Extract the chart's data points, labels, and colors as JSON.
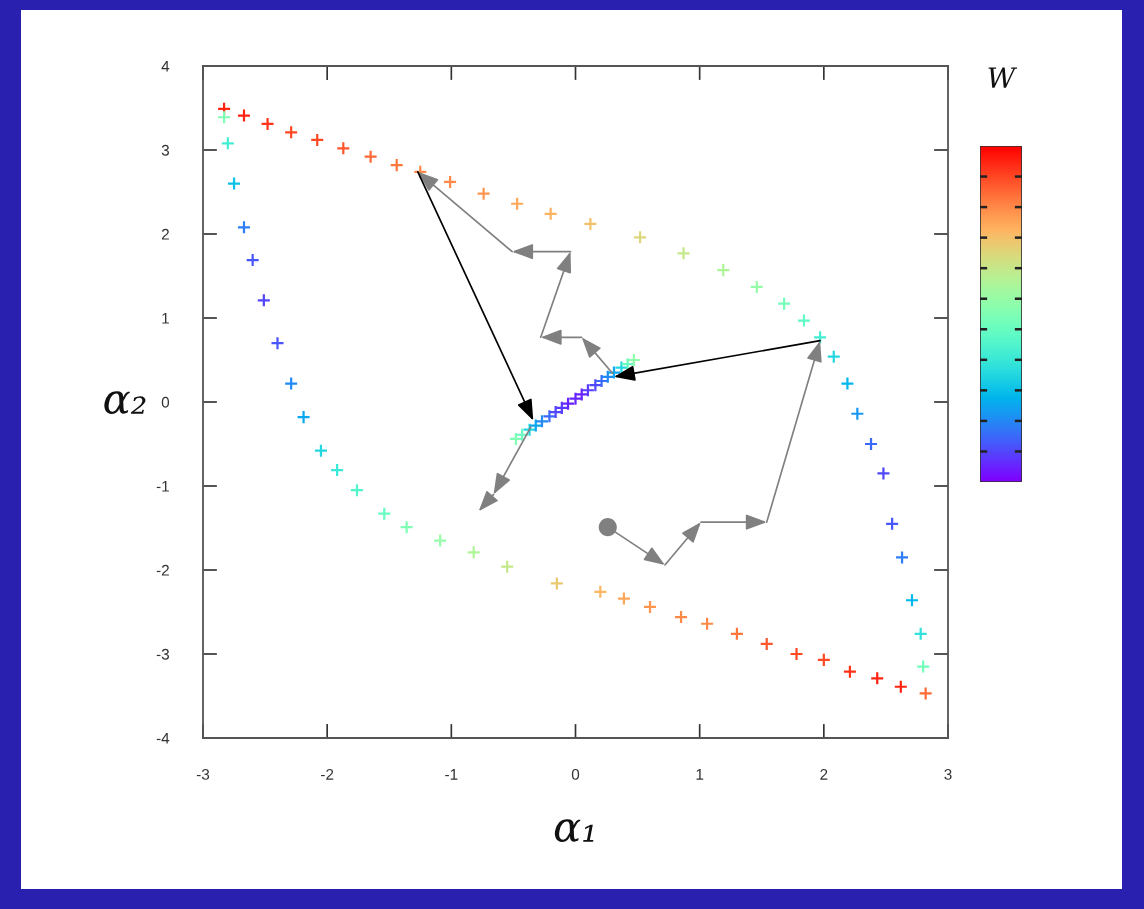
{
  "chart_data": {
    "type": "scatter",
    "xlabel": "α₁",
    "ylabel": "α₂",
    "clabel": "W",
    "xlim": [
      -3,
      3
    ],
    "ylim": [
      -4,
      4
    ],
    "xticks": [
      -3,
      -2,
      -1,
      0,
      1,
      2,
      3
    ],
    "yticks": [
      -4,
      -3,
      -2,
      -1,
      0,
      1,
      2,
      3,
      4
    ],
    "series": [
      {
        "marker": "cross",
        "x": [
          -2.83,
          -2.67,
          -2.48,
          -2.29,
          -2.08,
          -1.87,
          -1.65,
          -1.44,
          -1.25,
          -1.01,
          -0.74,
          -0.47,
          -0.2,
          0.12,
          0.52,
          0.87,
          1.19,
          1.46,
          1.68,
          1.84,
          1.97,
          2.08,
          2.19,
          2.27,
          2.38,
          2.48,
          2.55,
          2.63,
          2.71,
          2.78,
          2.8,
          2.82,
          2.62,
          2.43,
          2.21,
          2.0,
          1.78,
          1.54,
          1.3,
          1.06,
          0.85,
          0.6,
          0.39,
          0.2,
          -0.15,
          -0.55,
          -0.82,
          -1.09,
          -1.36,
          -1.54,
          -1.76,
          -1.92,
          -2.05,
          -2.19,
          -2.29,
          -2.4,
          -2.51,
          -2.6,
          -2.67,
          -2.75,
          -2.8,
          -2.83
        ],
        "values": [
          3.49,
          3.41,
          3.31,
          3.21,
          3.12,
          3.02,
          2.92,
          2.82,
          2.74,
          2.62,
          2.48,
          2.36,
          2.24,
          2.12,
          1.96,
          1.77,
          1.57,
          1.37,
          1.17,
          0.97,
          0.77,
          0.54,
          0.22,
          -0.14,
          -0.5,
          -0.85,
          -1.45,
          -1.85,
          -2.36,
          -2.76,
          -3.15,
          -3.47,
          -3.39,
          -3.29,
          -3.21,
          -3.07,
          -3.0,
          -2.88,
          -2.76,
          -2.64,
          -2.56,
          -2.44,
          -2.34,
          -2.26,
          -2.16,
          -1.96,
          -1.79,
          -1.65,
          -1.49,
          -1.33,
          -1.05,
          -0.81,
          -0.58,
          -0.18,
          0.22,
          0.7,
          1.21,
          1.69,
          2.08,
          2.6,
          3.08,
          3.39
        ],
        "colors": [
          "#ff2412",
          "#ff2412",
          "#ff3319",
          "#ff4824",
          "#ff4824",
          "#ff562c",
          "#ff6a36",
          "#ff773d",
          "#ff8a48",
          "#ff8a48",
          "#ff964f",
          "#ffa759",
          "#ffb260",
          "#f3c16a",
          "#dcd77a",
          "#c5e88a",
          "#aef598",
          "#97fca7",
          "#76ffb9",
          "#5ffac5",
          "#43eed3",
          "#23d7e0",
          "#02b7eb",
          "#1a96f3",
          "#3a6af9",
          "#5148fc",
          "#4856fb",
          "#2c7df7",
          "#02b7eb",
          "#31e1da",
          "#72febc",
          "#ff6a36",
          "#ff2412",
          "#ff2412",
          "#ff3319",
          "#ff4824",
          "#ff4824",
          "#ff562c",
          "#ff773d",
          "#ff8a48",
          "#ff8a48",
          "#ff964f",
          "#ffa759",
          "#fdb763",
          "#eaca70",
          "#c5e88a",
          "#aef598",
          "#97fca7",
          "#80ffb4",
          "#68fcc1",
          "#51f5cc",
          "#3ae8d7",
          "#23d7e0",
          "#0ca7ef",
          "#238af5",
          "#4856fb",
          "#5148fc",
          "#4856fb",
          "#2c7df7",
          "#0cc1e8",
          "#43eed3",
          "#80ffb4"
        ]
      },
      {
        "marker": "cross",
        "x": [
          -0.48,
          -0.43,
          -0.37,
          -0.32,
          -0.27,
          -0.21,
          -0.16,
          -0.11,
          -0.06,
          0.0,
          0.05,
          0.1,
          0.16,
          0.21,
          0.26,
          0.31,
          0.37,
          0.42,
          0.47
        ],
        "values": [
          -0.44,
          -0.39,
          -0.33,
          -0.28,
          -0.23,
          -0.17,
          -0.12,
          -0.07,
          -0.02,
          0.04,
          0.09,
          0.14,
          0.2,
          0.25,
          0.3,
          0.35,
          0.41,
          0.45,
          0.5
        ],
        "colors": [
          "#80ffb4",
          "#68fcc1",
          "#23d7e0",
          "#0ca7ef",
          "#238af5",
          "#3a6af9",
          "#5148fc",
          "#5a3afd",
          "#6824fe",
          "#6824fe",
          "#6824fe",
          "#5a3afd",
          "#5148fc",
          "#3a6af9",
          "#238af5",
          "#0ca7ef",
          "#23d7e0",
          "#68fcc1",
          "#8dfeac"
        ]
      },
      {
        "marker": "circle",
        "color": "#808080",
        "x": [
          0.26
        ],
        "values": [
          -1.49
        ]
      }
    ]
  }
}
